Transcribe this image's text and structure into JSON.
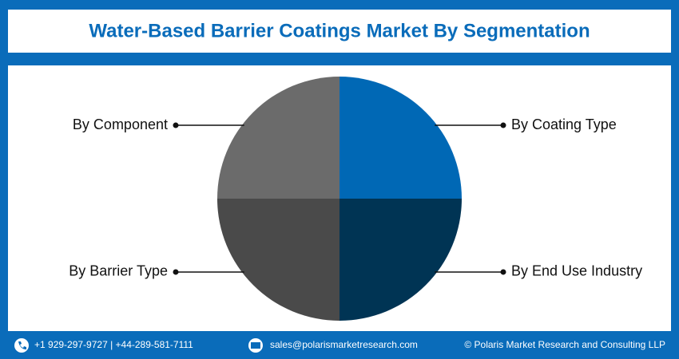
{
  "chart_data": {
    "type": "pie",
    "title": "Water-Based Barrier Coatings Market By Segmentation",
    "categories": [
      "By Coating Type",
      "By End Use Industry",
      "By Barrier Type",
      "By Component"
    ],
    "values": [
      25,
      25,
      25,
      25
    ],
    "colors": [
      "#0068b5",
      "#003454",
      "#4a4a4a",
      "#6b6b6b"
    ]
  },
  "footer": {
    "phone": "+1 929-297-9727 | +44-289-581-7111",
    "email": "sales@polarismarketresearch.com",
    "copyright": "© Polaris Market Research and Consulting LLP"
  }
}
